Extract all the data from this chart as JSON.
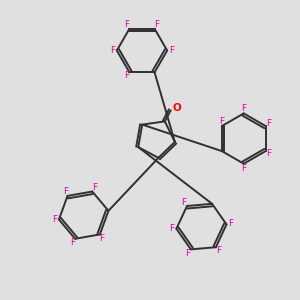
{
  "background_color": "#e0e0e0",
  "bond_color": "#303030",
  "F_color": "#e800a0",
  "O_color": "#ff0000",
  "bond_width": 1.4,
  "dbo": 0.022,
  "font_size_F": 6.5,
  "font_size_O": 7.5,
  "figsize": [
    3.0,
    3.0
  ],
  "dpi": 100,
  "xlim": [
    -1.3,
    1.3
  ],
  "ylim": [
    -1.35,
    1.25
  ]
}
